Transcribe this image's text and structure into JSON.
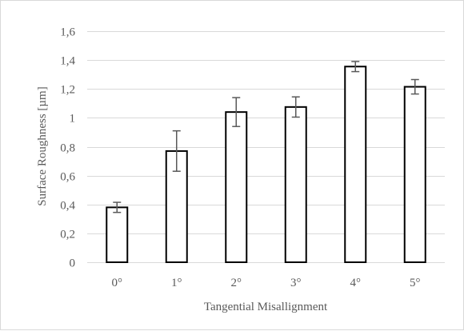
{
  "chart_data": {
    "type": "bar",
    "title": "",
    "xlabel": "Tangential Misallignment",
    "ylabel": "Surface Roughness [µm]",
    "categories": [
      "0°",
      "1°",
      "2°",
      "3°",
      "4°",
      "5°"
    ],
    "values": [
      0.38,
      0.77,
      1.04,
      1.075,
      1.355,
      1.215
    ],
    "error_bars": [
      0.035,
      0.14,
      0.1,
      0.07,
      0.035,
      0.05
    ],
    "ylim": [
      0,
      1.6
    ],
    "yticks": [
      0,
      0.2,
      0.4,
      0.6,
      0.8,
      1,
      1.2,
      1.4,
      1.6
    ],
    "ytick_labels": [
      "0",
      "0,2",
      "0,4",
      "0,6",
      "0,8",
      "1",
      "1,2",
      "1,4",
      "1,6"
    ],
    "grid": true,
    "legend": "none",
    "colors": {
      "bar_fill": "#ffffff",
      "bar_stroke": "#000000",
      "grid": "#d9d9d9",
      "error_bar": "#595959",
      "text": "#595959"
    }
  }
}
